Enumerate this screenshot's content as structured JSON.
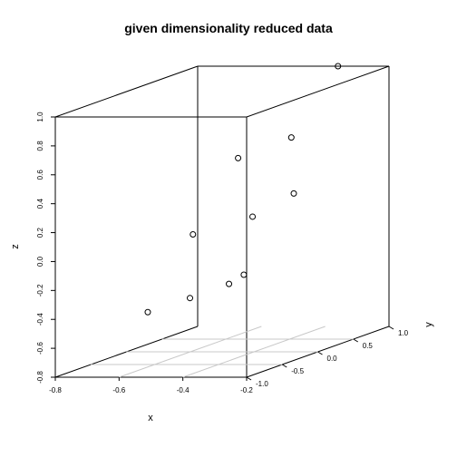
{
  "chart_data": {
    "type": "scatter",
    "title": "given dimensionality reduced data",
    "xlabel": "x",
    "ylabel": "y",
    "zlabel": "z",
    "xlim": [
      -0.8,
      -0.2
    ],
    "ylim": [
      -1.0,
      1.0
    ],
    "zlim": [
      -0.8,
      1.0
    ],
    "x_ticks": [
      "-0.8",
      "-0.6",
      "-0.4",
      "-0.2"
    ],
    "y_ticks": [
      "-1.0",
      "-0.5",
      "0.0",
      "0.5",
      "1.0"
    ],
    "z_ticks": [
      "-0.8",
      "-0.6",
      "-0.4",
      "-0.2",
      "0.0",
      "0.2",
      "0.4",
      "0.6",
      "0.8",
      "1.0"
    ],
    "points": [
      {
        "x": -0.36,
        "y": 1.0,
        "z": 1.0
      },
      {
        "x": -0.35,
        "y": 0.3,
        "z": 0.63
      },
      {
        "x": -0.45,
        "y": 0.0,
        "z": 0.54
      },
      {
        "x": -0.32,
        "y": 0.2,
        "z": 0.26
      },
      {
        "x": -0.36,
        "y": -0.2,
        "z": 0.17
      },
      {
        "x": -0.48,
        "y": -0.5,
        "z": 0.1
      },
      {
        "x": -0.22,
        "y": -0.95,
        "z": -0.1
      },
      {
        "x": -0.3,
        "y": -0.8,
        "z": -0.19
      },
      {
        "x": -0.4,
        "y": -0.9,
        "z": -0.27
      },
      {
        "x": -0.51,
        "y": -1.0,
        "z": -0.35
      }
    ]
  }
}
